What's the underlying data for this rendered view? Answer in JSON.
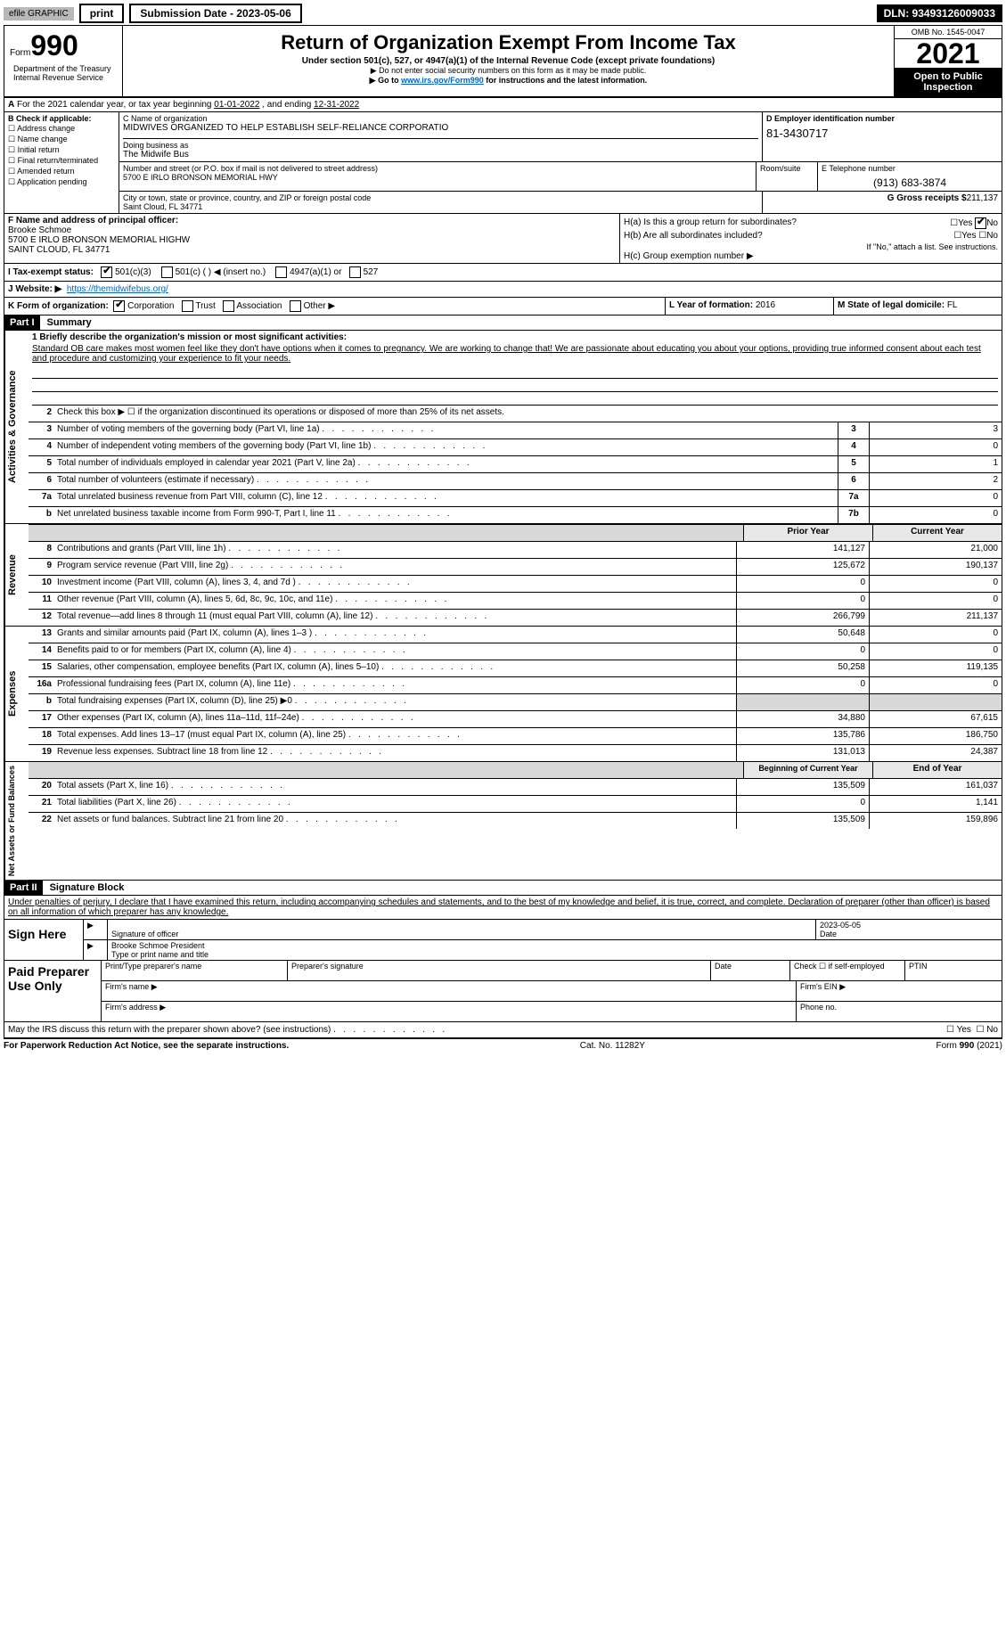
{
  "topbar": {
    "efile": "efile GRAPHIC",
    "print": "print",
    "submission": "Submission Date - 2023-05-06",
    "dln": "DLN: 93493126009033"
  },
  "header": {
    "form_label": "Form",
    "form_number": "990",
    "title": "Return of Organization Exempt From Income Tax",
    "subtitle": "Under section 501(c), 527, or 4947(a)(1) of the Internal Revenue Code (except private foundations)",
    "note1": "▶ Do not enter social security numbers on this form as it may be made public.",
    "note2_pre": "▶ Go to ",
    "note2_link": "www.irs.gov/Form990",
    "note2_post": " for instructions and the latest information.",
    "omb": "OMB No. 1545-0047",
    "year": "2021",
    "open_public": "Open to Public Inspection",
    "dept": "Department of the Treasury Internal Revenue Service"
  },
  "rowA": {
    "label_a": "A",
    "text": "For the 2021 calendar year, or tax year beginning ",
    "begin": "01-01-2022",
    "mid": " , and ending ",
    "end": "12-31-2022"
  },
  "colB": {
    "title": "B Check if applicable:",
    "items": [
      "Address change",
      "Name change",
      "Initial return",
      "Final return/terminated",
      "Amended return",
      "Application pending"
    ]
  },
  "sectionC": {
    "label": "C Name of organization",
    "name": "MIDWIVES ORGANIZED TO HELP ESTABLISH SELF-RELIANCE CORPORATIO",
    "dba_label": "Doing business as",
    "dba": "The Midwife Bus",
    "addr_label": "Number and street (or P.O. box if mail is not delivered to street address)",
    "addr": "5700 E IRLO BRONSON MEMORIAL HWY",
    "room_label": "Room/suite",
    "city_label": "City or town, state or province, country, and ZIP or foreign postal code",
    "city": "Saint Cloud, FL  34771"
  },
  "sectionD": {
    "label": "D Employer identification number",
    "ein": "81-3430717"
  },
  "sectionE": {
    "label": "E Telephone number",
    "tel": "(913) 683-3874"
  },
  "sectionG": {
    "label": "G Gross receipts $",
    "val": "211,137"
  },
  "sectionF": {
    "label": "F Name and address of principal officer:",
    "name": "Brooke Schmoe",
    "addr1": "5700 E IRLO BRONSON MEMORIAL HIGHW",
    "addr2": "SAINT CLOUD, FL  34771"
  },
  "sectionH": {
    "ha": "H(a)  Is this a group return for subordinates?",
    "ha_ans": "No",
    "hb": "H(b)  Are all subordinates included?",
    "hb_note": "If \"No,\" attach a list. See instructions.",
    "hc": "H(c)  Group exemption number ▶"
  },
  "sectionI": {
    "label": "I  Tax-exempt status:",
    "opt1": "501(c)(3)",
    "opt2": "501(c) (   ) ◀ (insert no.)",
    "opt3": "4947(a)(1) or",
    "opt4": "527"
  },
  "sectionJ": {
    "label": "J  Website: ▶",
    "url": "https://themidwifebus.org/"
  },
  "sectionK": {
    "label": "K Form of organization:",
    "opts": [
      "Corporation",
      "Trust",
      "Association",
      "Other ▶"
    ]
  },
  "sectionL": {
    "label": "L Year of formation: ",
    "val": "2016"
  },
  "sectionM": {
    "label": "M State of legal domicile: ",
    "val": "FL"
  },
  "part1": {
    "hdr": "Part I",
    "title": "Summary",
    "line1_label": "1  Briefly describe the organization's mission or most significant activities:",
    "mission": "Standard OB care makes most women feel like they don't have options when it comes to pregnancy. We are working to change that! We are passionate about educating you about your options, providing true informed consent about each test and procedure and customizing your experience to fit your needs.",
    "line2": "Check this box ▶ ☐ if the organization discontinued its operations or disposed of more than 25% of its net assets.",
    "gov_lines": [
      {
        "n": "3",
        "label": "Number of voting members of the governing body (Part VI, line 1a)",
        "box": "3",
        "val": "3"
      },
      {
        "n": "4",
        "label": "Number of independent voting members of the governing body (Part VI, line 1b)",
        "box": "4",
        "val": "0"
      },
      {
        "n": "5",
        "label": "Total number of individuals employed in calendar year 2021 (Part V, line 2a)",
        "box": "5",
        "val": "1"
      },
      {
        "n": "6",
        "label": "Total number of volunteers (estimate if necessary)",
        "box": "6",
        "val": "2"
      },
      {
        "n": "7a",
        "label": "Total unrelated business revenue from Part VIII, column (C), line 12",
        "box": "7a",
        "val": "0"
      },
      {
        "n": "b",
        "label": "Net unrelated business taxable income from Form 990-T, Part I, line 11",
        "box": "7b",
        "val": "0"
      }
    ],
    "prior_hdr": "Prior Year",
    "curr_hdr": "Current Year",
    "rev_lines": [
      {
        "n": "8",
        "label": "Contributions and grants (Part VIII, line 1h)",
        "prior": "141,127",
        "curr": "21,000"
      },
      {
        "n": "9",
        "label": "Program service revenue (Part VIII, line 2g)",
        "prior": "125,672",
        "curr": "190,137"
      },
      {
        "n": "10",
        "label": "Investment income (Part VIII, column (A), lines 3, 4, and 7d )",
        "prior": "0",
        "curr": "0"
      },
      {
        "n": "11",
        "label": "Other revenue (Part VIII, column (A), lines 5, 6d, 8c, 9c, 10c, and 11e)",
        "prior": "0",
        "curr": "0"
      },
      {
        "n": "12",
        "label": "Total revenue—add lines 8 through 11 (must equal Part VIII, column (A), line 12)",
        "prior": "266,799",
        "curr": "211,137"
      }
    ],
    "exp_lines": [
      {
        "n": "13",
        "label": "Grants and similar amounts paid (Part IX, column (A), lines 1–3 )",
        "prior": "50,648",
        "curr": "0"
      },
      {
        "n": "14",
        "label": "Benefits paid to or for members (Part IX, column (A), line 4)",
        "prior": "0",
        "curr": "0"
      },
      {
        "n": "15",
        "label": "Salaries, other compensation, employee benefits (Part IX, column (A), lines 5–10)",
        "prior": "50,258",
        "curr": "119,135"
      },
      {
        "n": "16a",
        "label": "Professional fundraising fees (Part IX, column (A), line 11e)",
        "prior": "0",
        "curr": "0"
      },
      {
        "n": "b",
        "label": "Total fundraising expenses (Part IX, column (D), line 25) ▶0",
        "prior": "",
        "curr": "",
        "shade": true
      },
      {
        "n": "17",
        "label": "Other expenses (Part IX, column (A), lines 11a–11d, 11f–24e)",
        "prior": "34,880",
        "curr": "67,615"
      },
      {
        "n": "18",
        "label": "Total expenses. Add lines 13–17 (must equal Part IX, column (A), line 25)",
        "prior": "135,786",
        "curr": "186,750"
      },
      {
        "n": "19",
        "label": "Revenue less expenses. Subtract line 18 from line 12",
        "prior": "131,013",
        "curr": "24,387"
      }
    ],
    "na_hdr1": "Beginning of Current Year",
    "na_hdr2": "End of Year",
    "na_lines": [
      {
        "n": "20",
        "label": "Total assets (Part X, line 16)",
        "prior": "135,509",
        "curr": "161,037"
      },
      {
        "n": "21",
        "label": "Total liabilities (Part X, line 26)",
        "prior": "0",
        "curr": "1,141"
      },
      {
        "n": "22",
        "label": "Net assets or fund balances. Subtract line 21 from line 20",
        "prior": "135,509",
        "curr": "159,896"
      }
    ]
  },
  "part2": {
    "hdr": "Part II",
    "title": "Signature Block",
    "decl": "Under penalties of perjury, I declare that I have examined this return, including accompanying schedules and statements, and to the best of my knowledge and belief, it is true, correct, and complete. Declaration of preparer (other than officer) is based on all information of which preparer has any knowledge.",
    "sign_here": "Sign Here",
    "sig_officer": "Signature of officer",
    "sig_date": "2023-05-05",
    "date_label": "Date",
    "name_title": "Brooke Schmoe  President",
    "type_name": "Type or print name and title",
    "paid": "Paid Preparer Use Only",
    "prep_name": "Print/Type preparer's name",
    "prep_sig": "Preparer's signature",
    "prep_date": "Date",
    "prep_check": "Check ☐ if self-employed",
    "ptin": "PTIN",
    "firm_name": "Firm's name  ▶",
    "firm_ein": "Firm's EIN ▶",
    "firm_addr": "Firm's address ▶",
    "phone": "Phone no.",
    "irs_q": "May the IRS discuss this return with the preparer shown above? (see instructions)",
    "yes": "Yes",
    "no": "No"
  },
  "footer": {
    "left": "For Paperwork Reduction Act Notice, see the separate instructions.",
    "mid": "Cat. No. 11282Y",
    "right": "Form 990 (2021)"
  },
  "side_labels": {
    "gov": "Activities & Governance",
    "rev": "Revenue",
    "exp": "Expenses",
    "na": "Net Assets or Fund Balances"
  }
}
